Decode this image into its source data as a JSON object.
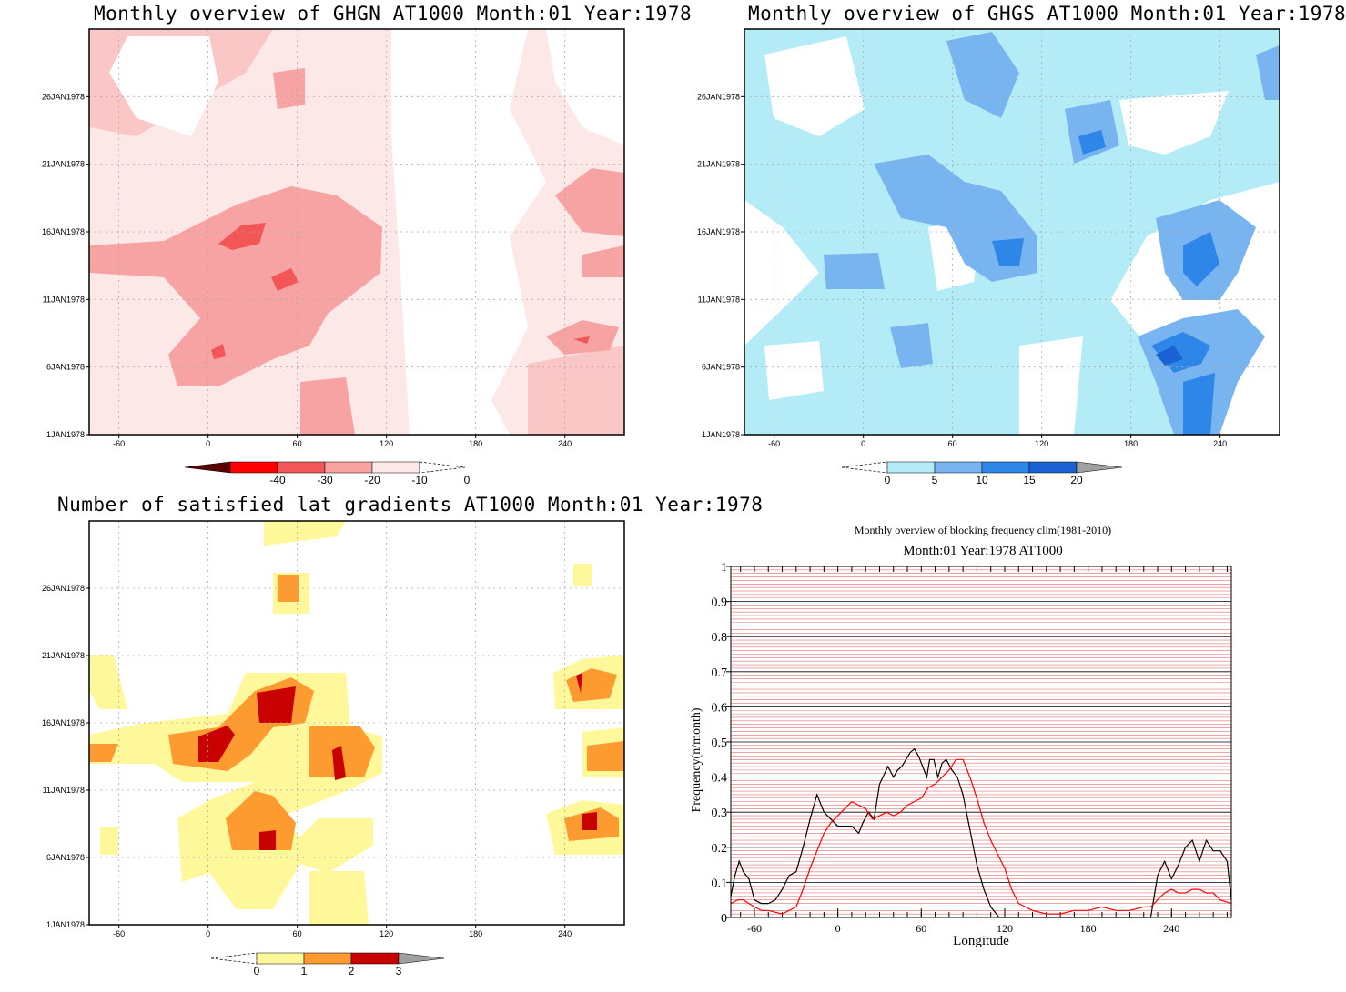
{
  "panels": {
    "ghgn": {
      "title": "Monthly overview of GHGN AT1000 Month:01 Year:1978"
    },
    "ghgs": {
      "title": "Monthly overview of GHGS AT1000 Month:01 Year:1978"
    },
    "gradients": {
      "title": "Number of satisfied lat gradients AT1000 Month:01 Year:1978"
    },
    "freq": {
      "title1": "Monthly overview of blocking frequency clim(1981-2010)",
      "title2": "Month:01 Year:1978  AT1000"
    }
  },
  "map_axes": {
    "y_ticks": [
      "1JAN1978",
      "6JAN1978",
      "11JAN1978",
      "16JAN1978",
      "21JAN1978",
      "26JAN1978"
    ],
    "x_ticks": [
      "-60",
      "0",
      "60",
      "120",
      "180",
      "240"
    ]
  },
  "colorbars": {
    "ghgn": {
      "labels": [
        "-40",
        "-30",
        "-20",
        "-10",
        "0"
      ],
      "colors": [
        "#5a0000",
        "#ff0000",
        "#f35656",
        "#fba3a3",
        "#fde8e8"
      ]
    },
    "ghgs": {
      "labels": [
        "0",
        "5",
        "10",
        "15",
        "20"
      ],
      "colors": [
        "#b3ecf6",
        "#78b4f0",
        "#2e86e8",
        "#1a62d4",
        "#a0a0a0"
      ]
    },
    "gradients": {
      "labels": [
        "0",
        "1",
        "2",
        "3"
      ],
      "colors": [
        "#fff89a",
        "#fd9a30",
        "#c80000",
        "#a0a0a0"
      ]
    }
  },
  "chart_data": [
    {
      "type": "line",
      "title": "Monthly overview of blocking frequency clim(1981-2010)",
      "subtitle": "Month:01 Year:1978  AT1000",
      "xlabel": "Longitude",
      "ylabel": "Frequency(n/month)",
      "xlim": [
        -77,
        283
      ],
      "ylim": [
        0,
        1
      ],
      "x_ticks": [
        "-60",
        "0",
        "60",
        "120",
        "180",
        "240"
      ],
      "y_ticks": [
        "0",
        "0.1",
        "0.2",
        "0.3",
        "0.4",
        "0.5",
        "0.6",
        "0.7",
        "0.8",
        "0.9",
        "1"
      ],
      "grid": true,
      "series": [
        {
          "color": "#000000",
          "x": [
            -77,
            -74,
            -71,
            -68,
            -64,
            -60,
            -55,
            -50,
            -45,
            -40,
            -35,
            -30,
            -25,
            -20,
            -15,
            -10,
            -5,
            0,
            5,
            10,
            15,
            18,
            22,
            26,
            30,
            36,
            40,
            43,
            46,
            49,
            52,
            55,
            58,
            61,
            64,
            66,
            69,
            72,
            75,
            78,
            82,
            86,
            90,
            95,
            100,
            105,
            110,
            116,
            225,
            230,
            235,
            240,
            245,
            250,
            255,
            260,
            265,
            270,
            275,
            280,
            283
          ],
          "y": [
            0.06,
            0.12,
            0.16,
            0.13,
            0.11,
            0.05,
            0.04,
            0.04,
            0.05,
            0.08,
            0.12,
            0.13,
            0.2,
            0.28,
            0.35,
            0.3,
            0.28,
            0.26,
            0.26,
            0.26,
            0.24,
            0.27,
            0.3,
            0.28,
            0.38,
            0.43,
            0.4,
            0.42,
            0.43,
            0.45,
            0.47,
            0.48,
            0.46,
            0.43,
            0.4,
            0.45,
            0.45,
            0.4,
            0.44,
            0.45,
            0.42,
            0.4,
            0.35,
            0.25,
            0.15,
            0.08,
            0.03,
            0.0,
            0.0,
            0.12,
            0.16,
            0.11,
            0.15,
            0.2,
            0.22,
            0.16,
            0.22,
            0.19,
            0.19,
            0.16,
            0.05
          ]
        },
        {
          "color": "#ff0000",
          "x": [
            -77,
            -72,
            -68,
            -64,
            -60,
            -55,
            -50,
            -40,
            -30,
            -25,
            -20,
            -15,
            -10,
            -5,
            0,
            5,
            10,
            15,
            20,
            25,
            30,
            35,
            40,
            45,
            50,
            55,
            60,
            65,
            70,
            75,
            80,
            85,
            90,
            95,
            100,
            105,
            110,
            115,
            120,
            125,
            130,
            140,
            150,
            160,
            170,
            180,
            190,
            200,
            210,
            220,
            225,
            230,
            235,
            240,
            245,
            250,
            255,
            260,
            265,
            270,
            275,
            283
          ],
          "y": [
            0.04,
            0.05,
            0.05,
            0.04,
            0.03,
            0.02,
            0.02,
            0.01,
            0.03,
            0.08,
            0.14,
            0.19,
            0.24,
            0.27,
            0.29,
            0.31,
            0.33,
            0.32,
            0.31,
            0.28,
            0.29,
            0.3,
            0.29,
            0.3,
            0.32,
            0.33,
            0.34,
            0.37,
            0.38,
            0.4,
            0.42,
            0.45,
            0.45,
            0.4,
            0.34,
            0.27,
            0.22,
            0.18,
            0.14,
            0.08,
            0.04,
            0.02,
            0.01,
            0.01,
            0.02,
            0.02,
            0.03,
            0.02,
            0.02,
            0.03,
            0.03,
            0.05,
            0.07,
            0.08,
            0.07,
            0.07,
            0.08,
            0.08,
            0.07,
            0.07,
            0.05,
            0.04
          ]
        }
      ]
    }
  ]
}
